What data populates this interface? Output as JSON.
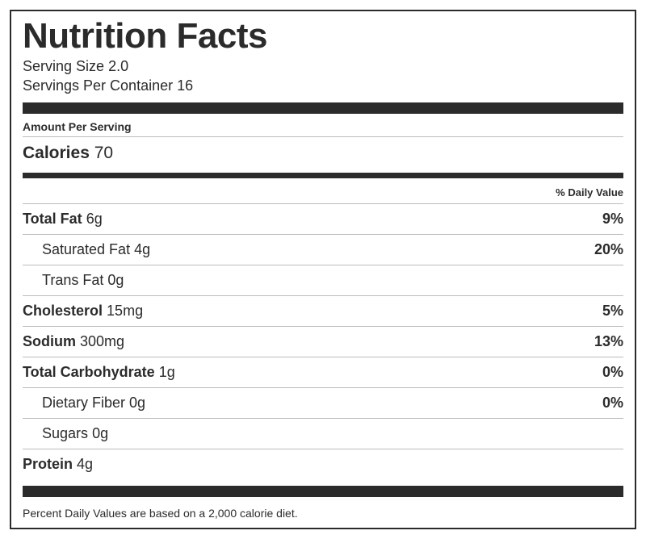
{
  "title": "Nutrition Facts",
  "serving_size_label": "Serving Size",
  "serving_size_value": "2.0",
  "servings_per_container_label": "Servings Per Container",
  "servings_per_container_value": "16",
  "amount_per_serving_label": "Amount Per Serving",
  "calories_label": "Calories",
  "calories_value": "70",
  "daily_value_header": "% Daily Value",
  "rows": {
    "total_fat": {
      "label": "Total Fat",
      "amount": "6g",
      "dv": "9%"
    },
    "saturated_fat": {
      "label": "Saturated Fat",
      "amount": "4g",
      "dv": "20%"
    },
    "trans_fat": {
      "label": "Trans Fat",
      "amount": "0g",
      "dv": ""
    },
    "cholesterol": {
      "label": "Cholesterol",
      "amount": "15mg",
      "dv": "5%"
    },
    "sodium": {
      "label": "Sodium",
      "amount": "300mg",
      "dv": "13%"
    },
    "total_carb": {
      "label": "Total Carbohydrate",
      "amount": "1g",
      "dv": "0%"
    },
    "dietary_fiber": {
      "label": "Dietary Fiber",
      "amount": "0g",
      "dv": "0%"
    },
    "sugars": {
      "label": "Sugars",
      "amount": "0g",
      "dv": ""
    },
    "protein": {
      "label": "Protein",
      "amount": "4g",
      "dv": ""
    }
  },
  "footnote": "Percent Daily Values are based on a 2,000 calorie diet.",
  "colors": {
    "text": "#2b2b2b",
    "border": "#2b2b2b",
    "rule": "#bcbcbc",
    "background": "#ffffff"
  }
}
